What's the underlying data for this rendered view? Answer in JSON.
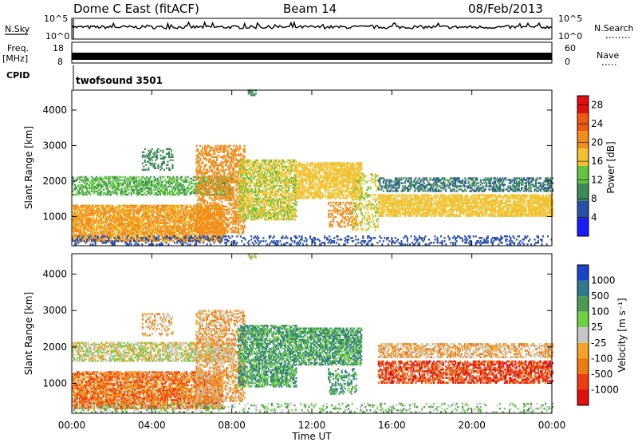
{
  "header": {
    "station": "Dome C East (fitACF)",
    "beam": "Beam 14",
    "date": "08/Feb/2013"
  },
  "strips": {
    "nsky_label": "N.Sky",
    "nsky_ticks": [
      "10^5",
      "10^0"
    ],
    "nsearch_label": "N.Search",
    "nsearch_ticks": [
      "10^5",
      "10^0"
    ],
    "freq_label": "Freq.",
    "freq_unit": "[MHz]",
    "freq_ticks": [
      "18",
      "8"
    ],
    "nave_label": "Nave",
    "nave_ticks": [
      "60",
      "0"
    ],
    "cpid_label": "CPID",
    "cpid_value": "twofsound 3501"
  },
  "colors": {
    "power": [
      "#1a1aff",
      "#2a4fa8",
      "#3f8a5a",
      "#62c441",
      "#f2c230",
      "#f28c1a",
      "#ef5a12",
      "#e01010"
    ],
    "velocity": [
      "#1a44c8",
      "#2f7a8c",
      "#4a9a55",
      "#6fd144",
      "#c6c6c6",
      "#f2a428",
      "#ef7a12",
      "#ef3a12",
      "#e01010"
    ],
    "ground_scatter": "#bdbdbd"
  },
  "chart_data": [
    {
      "type": "heatmap",
      "title": "Power",
      "xlabel": "",
      "ylabel": "Slant Range [km]",
      "x_ticks": [
        "00:00",
        "04:00",
        "08:00",
        "12:00",
        "16:00",
        "20:00",
        "00:00"
      ],
      "xlim_hours": [
        0,
        24
      ],
      "y_ticks": [
        "1000",
        "2000",
        "3000",
        "4000"
      ],
      "ylim_km": [
        180,
        4560
      ],
      "colorbar_label": "Power [dB]",
      "colorbar_ticks": [
        "4",
        "8",
        "12",
        "16",
        "20",
        "24",
        "28"
      ],
      "colorbar_range": [
        0,
        30
      ],
      "scatter_regions": [
        {
          "t0": 0.0,
          "t1": 7.5,
          "r0": 300,
          "r1": 1300,
          "level": 20,
          "density": 0.75
        },
        {
          "t0": 0.0,
          "t1": 8.0,
          "r0": 1600,
          "r1": 2100,
          "level": 12,
          "density": 0.55
        },
        {
          "t0": 3.5,
          "t1": 5.0,
          "r0": 2300,
          "r1": 2900,
          "level": 10,
          "density": 0.3
        },
        {
          "t0": 6.2,
          "t1": 8.6,
          "r0": 500,
          "r1": 3000,
          "level": 22,
          "density": 0.45
        },
        {
          "t0": 8.3,
          "t1": 11.2,
          "r0": 900,
          "r1": 2600,
          "level": 16,
          "density": 0.6
        },
        {
          "t0": 11.2,
          "t1": 14.5,
          "r0": 1500,
          "r1": 2500,
          "level": 18,
          "density": 0.65
        },
        {
          "t0": 12.8,
          "t1": 14.2,
          "r0": 700,
          "r1": 1400,
          "level": 22,
          "density": 0.35
        },
        {
          "t0": 14.0,
          "t1": 15.3,
          "r0": 600,
          "r1": 2200,
          "level": 16,
          "density": 0.3
        },
        {
          "t0": 15.3,
          "t1": 24.0,
          "r0": 1000,
          "r1": 1600,
          "level": 18,
          "density": 0.7
        },
        {
          "t0": 15.3,
          "t1": 24.0,
          "r0": 1700,
          "r1": 2100,
          "level": 8,
          "density": 0.5
        },
        {
          "t0": 0.0,
          "t1": 24.0,
          "r0": 200,
          "r1": 450,
          "level": 6,
          "density": 0.25
        },
        {
          "t0": 8.8,
          "t1": 9.2,
          "r0": 4400,
          "r1": 4560,
          "level": 10,
          "density": 0.6
        }
      ]
    },
    {
      "type": "heatmap",
      "title": "Velocity",
      "xlabel": "Time UT",
      "ylabel": "Slant Range [km]",
      "x_ticks": [
        "00:00",
        "04:00",
        "08:00",
        "12:00",
        "16:00",
        "20:00",
        "00:00"
      ],
      "xlim_hours": [
        0,
        24
      ],
      "y_ticks": [
        "1000",
        "2000",
        "3000",
        "4000"
      ],
      "ylim_km": [
        180,
        4560
      ],
      "colorbar_label": "Velocity [m s⁻¹]",
      "colorbar_ticks": [
        "1000",
        "500",
        "100",
        "25",
        "-25",
        "-100",
        "-500",
        "-1000"
      ],
      "scatter_regions": [
        {
          "t0": 0.0,
          "t1": 7.5,
          "r0": 300,
          "r1": 1300,
          "level": 6,
          "density": 0.7
        },
        {
          "t0": 0.0,
          "t1": 8.0,
          "r0": 1600,
          "r1": 2100,
          "level": 4,
          "density": 0.55
        },
        {
          "t0": 3.5,
          "t1": 5.0,
          "r0": 2300,
          "r1": 2900,
          "level": 5,
          "density": 0.3
        },
        {
          "t0": 6.2,
          "t1": 8.6,
          "r0": 500,
          "r1": 3000,
          "level": 5,
          "density": 0.45
        },
        {
          "t0": 8.3,
          "t1": 11.2,
          "r0": 900,
          "r1": 2600,
          "level": 2,
          "density": 0.6
        },
        {
          "t0": 11.2,
          "t1": 14.5,
          "r0": 1500,
          "r1": 2500,
          "level": 2,
          "density": 0.65
        },
        {
          "t0": 12.8,
          "t1": 14.2,
          "r0": 700,
          "r1": 1400,
          "level": 2,
          "density": 0.35
        },
        {
          "t0": 15.3,
          "t1": 24.0,
          "r0": 1000,
          "r1": 1600,
          "level": 7,
          "density": 0.6
        },
        {
          "t0": 15.3,
          "t1": 24.0,
          "r0": 1700,
          "r1": 2100,
          "level": 5,
          "density": 0.5
        },
        {
          "t0": 0.0,
          "t1": 24.0,
          "r0": 200,
          "r1": 450,
          "level": 3,
          "density": 0.2
        },
        {
          "t0": 8.8,
          "t1": 9.2,
          "r0": 4400,
          "r1": 4560,
          "level": 4,
          "density": 0.6
        }
      ]
    }
  ]
}
